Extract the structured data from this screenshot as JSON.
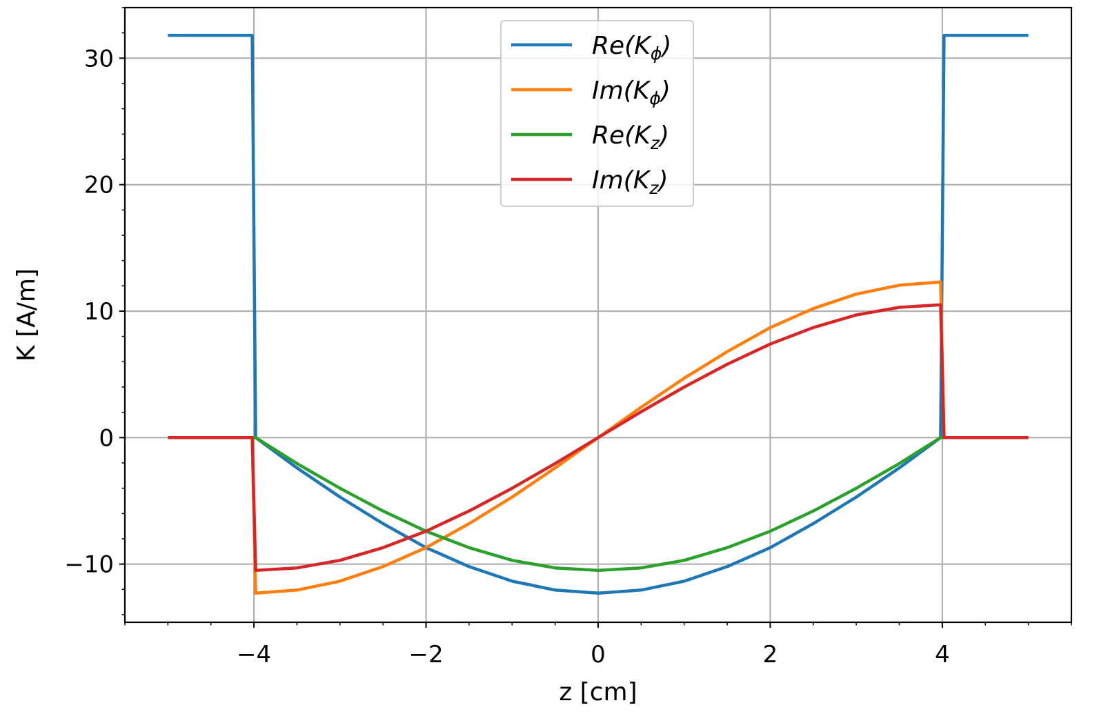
{
  "chart_data": {
    "type": "line",
    "title": "",
    "xlabel": "z [cm]",
    "ylabel": "K [A/m]",
    "xlim": [
      -5.5,
      5.5
    ],
    "ylim": [
      -14.6,
      34.0
    ],
    "grid": true,
    "legend_position": "top-center",
    "x_ticks": [
      {
        "value": -4,
        "label": "−4"
      },
      {
        "value": -2,
        "label": "−2"
      },
      {
        "value": 0,
        "label": "0"
      },
      {
        "value": 2,
        "label": "2"
      },
      {
        "value": 4,
        "label": "4"
      }
    ],
    "y_ticks": [
      {
        "value": -10,
        "label": "−10"
      },
      {
        "value": 0,
        "label": "0"
      },
      {
        "value": 10,
        "label": "10"
      },
      {
        "value": 20,
        "label": "20"
      },
      {
        "value": 30,
        "label": "30"
      }
    ],
    "x_minor_step": 0.5,
    "y_minor_step": 2,
    "series": [
      {
        "name": "Re(Kφ)",
        "legend_base": "Re(K",
        "legend_sub": "ϕ",
        "color": "#1f77b4",
        "x": [
          -5,
          -4.02,
          -3.98,
          -3.5,
          -3,
          -2.5,
          -2,
          -1.5,
          -1,
          -0.5,
          0,
          0.5,
          1,
          1.5,
          2,
          2.5,
          3,
          3.5,
          3.98,
          4.02,
          5
        ],
        "y": [
          31.8,
          31.8,
          0,
          -2.4,
          -4.7,
          -6.8,
          -8.7,
          -10.2,
          -11.35,
          -12.05,
          -12.3,
          -12.05,
          -11.35,
          -10.2,
          -8.7,
          -6.8,
          -4.7,
          -2.4,
          0,
          31.8,
          31.8
        ]
      },
      {
        "name": "Im(Kφ)",
        "legend_base": "Im(K",
        "legend_sub": "ϕ",
        "color": "#ff7f0e",
        "x": [
          -5,
          -4.02,
          -3.98,
          -3.5,
          -3,
          -2.5,
          -2,
          -1.5,
          -1,
          -0.5,
          0,
          0.5,
          1,
          1.5,
          2,
          2.5,
          3,
          3.5,
          3.98,
          4.02,
          5
        ],
        "y": [
          0,
          0,
          -12.3,
          -12.05,
          -11.35,
          -10.2,
          -8.7,
          -6.8,
          -4.7,
          -2.4,
          0,
          2.4,
          4.7,
          6.8,
          8.7,
          10.2,
          11.35,
          12.05,
          12.3,
          0,
          0
        ]
      },
      {
        "name": "Re(Kz)",
        "legend_base": "Re(K",
        "legend_sub": "z",
        "color": "#2ca02c",
        "x": [
          -5,
          -4.02,
          -3.98,
          -3.5,
          -3,
          -2.5,
          -2,
          -1.5,
          -1,
          -0.5,
          0,
          0.5,
          1,
          1.5,
          2,
          2.5,
          3,
          3.5,
          3.98,
          4.02,
          5
        ],
        "y": [
          0,
          0,
          0,
          -2.05,
          -4.0,
          -5.8,
          -7.4,
          -8.7,
          -9.7,
          -10.3,
          -10.5,
          -10.3,
          -9.7,
          -8.7,
          -7.4,
          -5.8,
          -4.0,
          -2.05,
          0,
          0,
          0
        ]
      },
      {
        "name": "Im(Kz)",
        "legend_base": "Im(K",
        "legend_sub": "z",
        "color": "#d62728",
        "x": [
          -5,
          -4.02,
          -3.98,
          -3.5,
          -3,
          -2.5,
          -2,
          -1.5,
          -1,
          -0.5,
          0,
          0.5,
          1,
          1.5,
          2,
          2.5,
          3,
          3.5,
          3.98,
          4.02,
          5
        ],
        "y": [
          0,
          0,
          -10.5,
          -10.3,
          -9.7,
          -8.7,
          -7.4,
          -5.8,
          -4.0,
          -2.05,
          0,
          2.05,
          4.0,
          5.8,
          7.4,
          8.7,
          9.7,
          10.3,
          10.5,
          0,
          0
        ]
      }
    ]
  }
}
